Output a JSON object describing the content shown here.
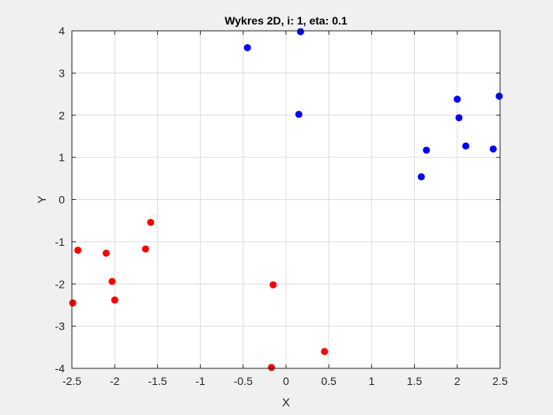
{
  "chart_data": {
    "type": "scatter",
    "title": "Wykres 2D, i: 1, eta: 0.1",
    "xlabel": "X",
    "ylabel": "Y",
    "xlim": [
      -2.5,
      2.5
    ],
    "ylim": [
      -4,
      4
    ],
    "xticks": [
      -2.5,
      -2,
      -1.5,
      -1,
      -0.5,
      0,
      0.5,
      1,
      1.5,
      2,
      2.5
    ],
    "yticks": [
      -4,
      -3,
      -2,
      -1,
      0,
      1,
      2,
      3,
      4
    ],
    "xtick_labels": [
      "-2.5",
      "-2",
      "-1.5",
      "-1",
      "-0.5",
      "0",
      "0.5",
      "1",
      "1.5",
      "2",
      "2.5"
    ],
    "ytick_labels": [
      "-4",
      "-3",
      "-2",
      "-1",
      "0",
      "1",
      "2",
      "3",
      "4"
    ],
    "grid": true,
    "series": [
      {
        "color": "#0000ff",
        "points": [
          [
            0.17,
            3.98
          ],
          [
            -0.45,
            3.6
          ],
          [
            0.15,
            2.02
          ],
          [
            2.0,
            2.38
          ],
          [
            2.02,
            1.94
          ],
          [
            2.49,
            2.45
          ],
          [
            1.64,
            1.17
          ],
          [
            2.1,
            1.27
          ],
          [
            2.42,
            1.2
          ],
          [
            1.58,
            0.54
          ]
        ]
      },
      {
        "color": "#ff0000",
        "points": [
          [
            -1.58,
            -0.54
          ],
          [
            -1.64,
            -1.17
          ],
          [
            -2.1,
            -1.27
          ],
          [
            -2.43,
            -1.2
          ],
          [
            -2.03,
            -1.94
          ],
          [
            -2.0,
            -2.38
          ],
          [
            -2.49,
            -2.45
          ],
          [
            -0.15,
            -2.02
          ],
          [
            0.45,
            -3.6
          ],
          [
            -0.17,
            -3.98
          ]
        ]
      }
    ]
  }
}
